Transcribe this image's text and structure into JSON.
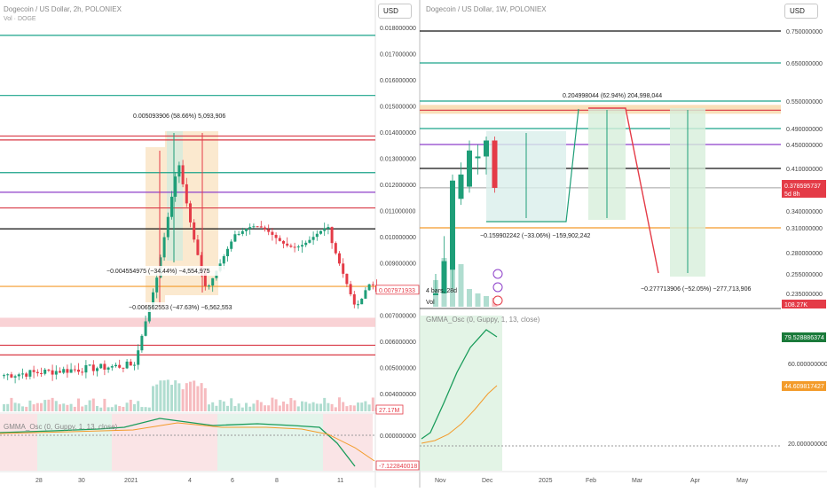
{
  "colors": {
    "bull": "#1e9e78",
    "bear": "#e43b47",
    "teal_line": "#1aa38a",
    "red_line": "#d93a46",
    "purple_line": "#8d3fc9",
    "black_line": "#111111",
    "orange_line": "#f39b2a",
    "pink_band": "#f8c7cb",
    "orange_band": "#f8d7a8",
    "gmma_long": "#f39b2a",
    "gmma_short": "#1a9c5b"
  },
  "usd_label": "USD",
  "chart_data": [
    {
      "type": "candlestick",
      "title": "Dogecoin / US Dollar, 2h, POLONIEX",
      "subtitle": "Vol · DOGE",
      "price_axis": [
        "0.018000000",
        "0.017000000",
        "0.016000000",
        "0.015000000",
        "0.014000000",
        "0.013000000",
        "0.012000000",
        "0.011000000",
        "0.010000000",
        "0.009000000",
        "0.008000000",
        "0.007000000",
        "0.006000000",
        "0.005000000",
        "0.004000000"
      ],
      "ylim": [
        0.0033,
        0.0187
      ],
      "x_ticks": [
        "28",
        "30",
        "2021",
        "4",
        "6",
        "8",
        "11"
      ],
      "last_price": "0.007971933",
      "volume_label": "27.17M",
      "osc_title": "GMMA_Osc (0, Guppy, 1, 13, close)",
      "osc_axis": [
        "0.000000000"
      ],
      "osc_last": "-7.12284001‍8",
      "horizontal_levels": [
        {
          "value": 0.0177,
          "color": "teal"
        },
        {
          "value": 0.0154,
          "color": "teal"
        },
        {
          "value": 0.01385,
          "color": "red"
        },
        {
          "value": 0.0137,
          "color": "red"
        },
        {
          "value": 0.01245,
          "color": "teal"
        },
        {
          "value": 0.0117,
          "color": "purple"
        },
        {
          "value": 0.0111,
          "color": "red"
        },
        {
          "value": 0.0103,
          "color": "black"
        },
        {
          "value": 0.0081,
          "color": "orange"
        },
        {
          "value": 0.00585,
          "color": "red"
        },
        {
          "value": 0.00548,
          "color": "red"
        }
      ],
      "annotations": [
        "0.005093906 (58.66%) 5,093,906",
        "−0.004554975 (−34.44%) −4,554,975",
        "−0.006562553 (−47.63%) −6,562,553"
      ]
    },
    {
      "type": "candlestick",
      "title": "Dogecoin / US Dollar, 1W, POLONIEX",
      "price_axis": [
        "0.750000000",
        "0.650000000",
        "0.550000000",
        "0.490000000",
        "0.450000000",
        "0.410000000",
        "0.340000000",
        "0.310000000",
        "0.280000000",
        "0.255000000",
        "0.235000000"
      ],
      "x_ticks": [
        "Nov",
        "Dec",
        "2025",
        "Feb",
        "Mar",
        "Apr",
        "May"
      ],
      "last_price": "0.378595737",
      "countdown": "5d 8h",
      "volume_label": "108.27K",
      "candles_label": "4 bars, 28d",
      "vol_label": "Vol",
      "osc_title": "GMMA_Osc (0, Guppy, 1, 13, close)",
      "osc_axis": [
        "60.000000000",
        "20.000000000"
      ],
      "osc_short_last": "79.528886374",
      "osc_long_last": "44.609817427",
      "annotations": [
        "0.204998044 (62.94%) 204,998,044",
        "−0.159902242 (−33.06%) −159,902,242",
        "−0.277713906 (−52.05%) −277,713,906"
      ]
    }
  ]
}
